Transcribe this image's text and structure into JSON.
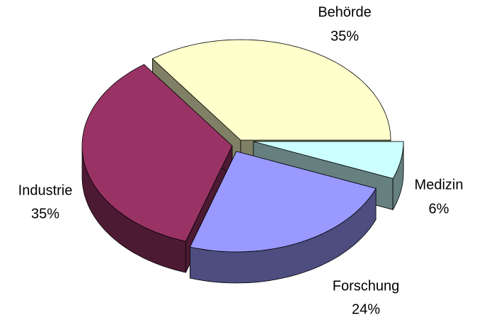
{
  "chart_data": {
    "type": "pie3d",
    "categories": [
      "Behörde",
      "Medizin",
      "Forschung",
      "Industrie"
    ],
    "values": [
      35,
      6,
      24,
      35
    ],
    "value_labels": [
      "35%",
      "6%",
      "24%",
      "35%"
    ],
    "colors": [
      "#FFFFCC",
      "#CCFFFF",
      "#9999FF",
      "#993366"
    ]
  }
}
